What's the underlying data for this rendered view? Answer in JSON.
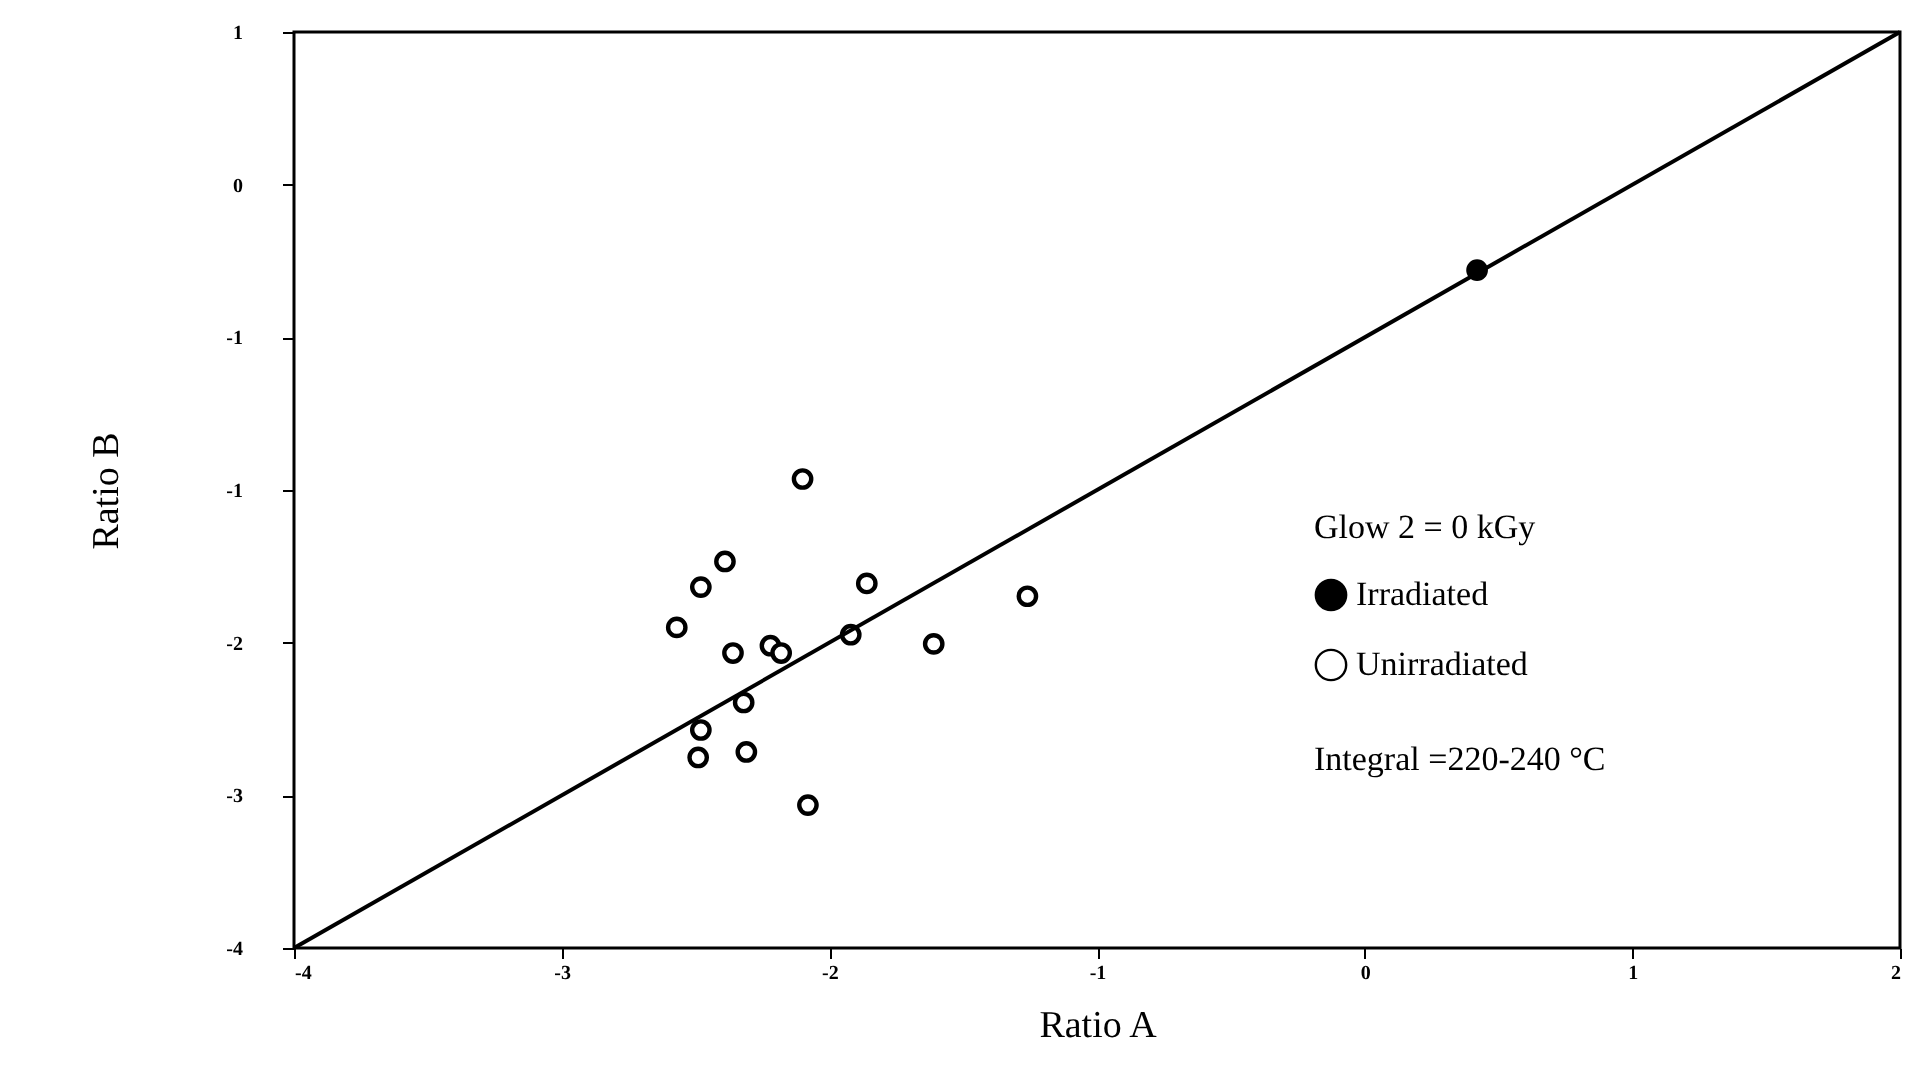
{
  "chart_data": {
    "type": "scatter",
    "xlabel": "Ratio A",
    "ylabel": "Ratio B",
    "legend_title": "Glow 2 = 0 kGy",
    "annotations": [
      "Integral =220-240 °C"
    ],
    "xlim": [
      -4,
      2
    ],
    "xticks": [
      -4,
      -3,
      -2,
      -1,
      0,
      1,
      2
    ],
    "ylim": [
      -4,
      1
    ],
    "yticks": [
      -4,
      {
        "value": -3.1667,
        "label": "-3"
      },
      {
        "value": -2.3333,
        "label": "-2"
      },
      {
        "value": -1.5,
        "label": "-1"
      },
      {
        "value": -0.6667,
        "label": "-1"
      },
      {
        "value": 0.1667,
        "label": "0"
      },
      1
    ],
    "grid": false,
    "legend": "right",
    "marker": "circle",
    "series": [
      {
        "name": "Irradiated",
        "color": "#000000",
        "x": [
          0.42
        ],
        "values": [
          -0.3
        ]
      },
      {
        "name": "Unirradiated",
        "color": "#ffffff",
        "x": [
          -2.1,
          -2.39,
          -2.48,
          -1.86,
          -2.57,
          -1.26,
          -2.36,
          -2.22,
          -2.18,
          -1.92,
          -1.61,
          -2.32,
          -2.48,
          -2.49,
          -2.31,
          -2.08
        ],
        "values": [
          -1.44,
          -1.89,
          -2.03,
          -2.01,
          -2.25,
          -2.08,
          -2.39,
          -2.35,
          -2.39,
          -2.29,
          -2.34,
          -2.66,
          -2.81,
          -2.96,
          -2.93,
          -3.22
        ]
      },
      {
        "type": "line",
        "color": "#000000",
        "x": [
          -4,
          2
        ],
        "values": [
          -4,
          1
        ],
        "line_style": "solid",
        "marker": "none"
      }
    ]
  }
}
